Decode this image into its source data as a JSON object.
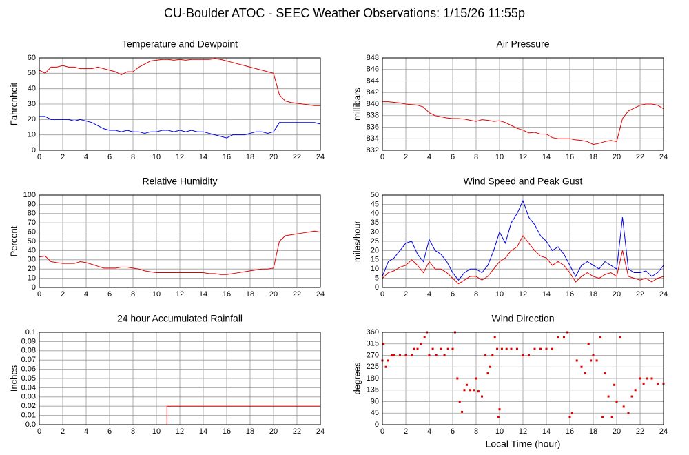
{
  "title": "CU-Boulder ATOC - SEEC Weather Observations: 1/15/26 11:55p",
  "chart_data": [
    {
      "type": "line",
      "title": "Temperature and Dewpoint",
      "y_label": "Fahrenheit",
      "x": [
        0,
        0.5,
        1,
        1.5,
        2,
        2.5,
        3,
        3.5,
        4,
        4.5,
        5,
        5.5,
        6,
        6.5,
        7,
        7.5,
        8,
        8.5,
        9,
        9.5,
        10,
        10.5,
        11,
        11.5,
        12,
        12.5,
        13,
        13.5,
        14,
        14.5,
        15,
        15.5,
        16,
        16.5,
        17,
        17.5,
        18,
        18.5,
        19,
        19.5,
        20,
        20.5,
        21,
        21.5,
        22,
        22.5,
        23,
        23.5,
        24
      ],
      "series": [
        {
          "color": "#e00000",
          "values": [
            52,
            50,
            54,
            54,
            55,
            54,
            54,
            53,
            53,
            53,
            54,
            53,
            52,
            51,
            49,
            51,
            51,
            54,
            56,
            58,
            58.5,
            59,
            59,
            58.5,
            59,
            58.5,
            59,
            59,
            59,
            59,
            59.5,
            59,
            58,
            57,
            56,
            55,
            54,
            53,
            52,
            51,
            50,
            36,
            32,
            31,
            30.5,
            30,
            29.5,
            29,
            29
          ]
        },
        {
          "color": "#0000e0",
          "values": [
            22,
            22,
            20,
            20,
            20,
            20,
            19,
            20,
            19,
            18,
            16,
            14,
            13,
            13,
            12,
            13,
            12,
            12,
            11,
            12,
            12,
            13,
            13,
            12,
            13,
            12,
            13,
            12,
            12,
            11,
            10,
            9,
            8,
            10,
            10,
            10,
            11,
            12,
            12,
            11,
            12,
            18,
            18,
            18,
            18,
            18,
            18,
            18,
            17
          ]
        }
      ],
      "xlim": [
        0,
        24
      ],
      "xticks": [
        0,
        2,
        4,
        6,
        8,
        10,
        12,
        14,
        16,
        18,
        20,
        22,
        24
      ],
      "ylim": [
        0,
        60
      ],
      "yticks": [
        0,
        10,
        20,
        30,
        40,
        50,
        60
      ],
      "grid": true
    },
    {
      "type": "line",
      "title": "Air Pressure",
      "y_label": "millibars",
      "x": [
        0,
        0.5,
        1,
        1.5,
        2,
        2.5,
        3,
        3.5,
        4,
        4.5,
        5,
        5.5,
        6,
        6.5,
        7,
        7.5,
        8,
        8.5,
        9,
        9.5,
        10,
        10.5,
        11,
        11.5,
        12,
        12.5,
        13,
        13.5,
        14,
        14.5,
        15,
        15.5,
        16,
        16.5,
        17,
        17.5,
        18,
        18.5,
        19,
        19.5,
        20,
        20.5,
        21,
        21.5,
        22,
        22.5,
        23,
        23.5,
        24
      ],
      "series": [
        {
          "color": "#e00000",
          "values": [
            840.4,
            840.4,
            840.3,
            840.2,
            840.0,
            839.9,
            839.8,
            839.5,
            838.5,
            838.0,
            837.8,
            837.6,
            837.5,
            837.5,
            837.4,
            837.2,
            837.0,
            837.3,
            837.2,
            837.0,
            837.1,
            836.8,
            836.3,
            835.8,
            835.5,
            835.0,
            835.1,
            834.8,
            834.8,
            834.2,
            834.0,
            834.0,
            834.0,
            833.8,
            833.7,
            833.5,
            833.0,
            833.2,
            833.5,
            833.7,
            833.5,
            837.5,
            838.8,
            839.3,
            839.8,
            840.0,
            840.0,
            839.8,
            839.2
          ]
        }
      ],
      "xlim": [
        0,
        24
      ],
      "xticks": [
        0,
        2,
        4,
        6,
        8,
        10,
        12,
        14,
        16,
        18,
        20,
        22,
        24
      ],
      "ylim": [
        832,
        848
      ],
      "yticks": [
        832,
        834,
        836,
        838,
        840,
        842,
        844,
        846,
        848
      ],
      "grid": true
    },
    {
      "type": "line",
      "title": "Relative Humidity",
      "y_label": "Percent",
      "x": [
        0,
        0.5,
        1,
        1.5,
        2,
        2.5,
        3,
        3.5,
        4,
        4.5,
        5,
        5.5,
        6,
        6.5,
        7,
        7.5,
        8,
        8.5,
        9,
        9.5,
        10,
        10.5,
        11,
        11.5,
        12,
        12.5,
        13,
        13.5,
        14,
        14.5,
        15,
        15.5,
        16,
        16.5,
        17,
        17.5,
        18,
        18.5,
        19,
        19.5,
        20,
        20.5,
        21,
        21.5,
        22,
        22.5,
        23,
        23.5,
        24
      ],
      "series": [
        {
          "color": "#e00000",
          "values": [
            33,
            34,
            28,
            27,
            26,
            26,
            26,
            28,
            27,
            25,
            23,
            21,
            21,
            21,
            22,
            22,
            21,
            20,
            18,
            17,
            16,
            16,
            16,
            16,
            16,
            16,
            16,
            16,
            16,
            15,
            15,
            14,
            14,
            15,
            16,
            17,
            18,
            19,
            20,
            20,
            21,
            50,
            56,
            57,
            58,
            59,
            60,
            61,
            60
          ]
        }
      ],
      "xlim": [
        0,
        24
      ],
      "xticks": [
        0,
        2,
        4,
        6,
        8,
        10,
        12,
        14,
        16,
        18,
        20,
        22,
        24
      ],
      "ylim": [
        0,
        100
      ],
      "yticks": [
        0,
        10,
        20,
        30,
        40,
        50,
        60,
        70,
        80,
        90,
        100
      ],
      "grid": true
    },
    {
      "type": "line",
      "title": "Wind Speed and Peak Gust",
      "y_label": "miles/hour",
      "x": [
        0,
        0.5,
        1,
        1.5,
        2,
        2.5,
        3,
        3.5,
        4,
        4.5,
        5,
        5.5,
        6,
        6.5,
        7,
        7.5,
        8,
        8.5,
        9,
        9.5,
        10,
        10.5,
        11,
        11.5,
        12,
        12.5,
        13,
        13.5,
        14,
        14.5,
        15,
        15.5,
        16,
        16.5,
        17,
        17.5,
        18,
        18.5,
        19,
        19.5,
        20,
        20.5,
        21,
        21.5,
        22,
        22.5,
        23,
        23.5,
        24
      ],
      "series": [
        {
          "color": "#0000e0",
          "values": [
            6,
            14,
            16,
            20,
            24,
            25,
            18,
            14,
            26,
            20,
            18,
            14,
            8,
            4,
            8,
            10,
            10,
            8,
            12,
            20,
            30,
            24,
            35,
            40,
            47,
            38,
            34,
            28,
            25,
            20,
            22,
            18,
            12,
            6,
            12,
            14,
            12,
            10,
            14,
            12,
            10,
            38,
            10,
            8,
            8,
            9,
            6,
            8,
            12
          ]
        },
        {
          "color": "#e00000",
          "values": [
            5,
            8,
            9,
            11,
            12,
            15,
            12,
            8,
            14,
            10,
            10,
            8,
            5,
            2,
            4,
            6,
            6,
            4,
            6,
            10,
            14,
            16,
            20,
            22,
            28,
            24,
            20,
            17,
            16,
            12,
            14,
            12,
            8,
            3,
            6,
            8,
            6,
            5,
            7,
            8,
            6,
            20,
            6,
            5,
            4,
            5,
            3,
            5,
            6
          ]
        }
      ],
      "xlim": [
        0,
        24
      ],
      "xticks": [
        0,
        2,
        4,
        6,
        8,
        10,
        12,
        14,
        16,
        18,
        20,
        22,
        24
      ],
      "ylim": [
        0,
        50
      ],
      "yticks": [
        0,
        5,
        10,
        15,
        20,
        25,
        30,
        35,
        40,
        45,
        50
      ],
      "grid": true
    },
    {
      "type": "line",
      "title": "24 hour Accumulated Rainfall",
      "y_label": "Inches",
      "x": [
        0,
        10.9,
        10.9,
        24
      ],
      "series": [
        {
          "color": "#e00000",
          "values": [
            0,
            0,
            0.02,
            0.02
          ]
        }
      ],
      "xlim": [
        0,
        24
      ],
      "xticks": [
        0,
        2,
        4,
        6,
        8,
        10,
        12,
        14,
        16,
        18,
        20,
        22,
        24
      ],
      "ylim": [
        0,
        0.1
      ],
      "yticks": [
        {
          "value": 0,
          "label": "0.0"
        },
        0.01,
        0.02,
        0.03,
        0.04,
        0.05,
        0.06,
        0.07,
        0.08,
        0.09,
        0.1
      ],
      "grid": true
    },
    {
      "type": "scatter",
      "title": "Wind Direction",
      "y_label": "degrees",
      "x_label": "Local Time (hour)",
      "x": [
        0,
        0.1,
        0.3,
        0.5,
        0.8,
        1,
        1.5,
        2,
        2.5,
        2.7,
        3,
        3.3,
        3.6,
        3.8,
        4,
        4.3,
        4.6,
        5,
        5.3,
        5.6,
        6,
        6.2,
        6.4,
        6.6,
        6.8,
        7,
        7.2,
        7.5,
        7.8,
        8,
        8.2,
        8.5,
        8.8,
        9,
        9.2,
        9.4,
        9.6,
        9.8,
        9.9,
        10,
        10.2,
        10.6,
        11,
        11.5,
        12,
        12.5,
        13,
        13.5,
        14,
        14.5,
        15,
        15.5,
        15.8,
        16,
        16.2,
        16.6,
        17,
        17.3,
        17.6,
        17.8,
        18,
        18.3,
        18.6,
        18.8,
        19,
        19.3,
        19.6,
        19.8,
        20,
        20.3,
        20.6,
        21,
        21.3,
        21.6,
        22,
        22.3,
        22.6,
        23,
        23.5,
        24
      ],
      "series": [
        {
          "color": "#e00000",
          "values": [
            250,
            315,
            225,
            250,
            270,
            270,
            270,
            270,
            270,
            295,
            295,
            315,
            340,
            360,
            270,
            295,
            270,
            295,
            270,
            295,
            295,
            360,
            180,
            90,
            50,
            135,
            155,
            135,
            135,
            180,
            130,
            110,
            270,
            200,
            225,
            270,
            340,
            295,
            30,
            60,
            295,
            295,
            295,
            295,
            270,
            270,
            295,
            295,
            295,
            295,
            340,
            340,
            360,
            30,
            45,
            250,
            225,
            200,
            315,
            250,
            270,
            250,
            340,
            30,
            200,
            110,
            30,
            155,
            90,
            340,
            70,
            45,
            110,
            135,
            180,
            160,
            180,
            180,
            160,
            160
          ]
        }
      ],
      "xlim": [
        0,
        24
      ],
      "xticks": [
        0,
        2,
        4,
        6,
        8,
        10,
        12,
        14,
        16,
        18,
        20,
        22,
        24
      ],
      "ylim": [
        0,
        360
      ],
      "yticks": [
        0,
        45,
        90,
        135,
        180,
        225,
        270,
        315,
        360
      ],
      "grid": true
    }
  ]
}
